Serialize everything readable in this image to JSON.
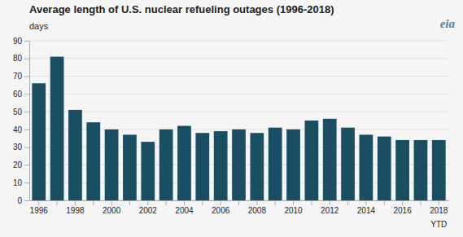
{
  "chart_data": {
    "type": "bar",
    "title": "Average length of U.S. nuclear refueling outages (1996-2018)",
    "ylabel": "days",
    "annotation": "YTD",
    "logo": "eia",
    "categories": [
      "1996",
      null,
      "1998",
      null,
      "2000",
      null,
      "2002",
      null,
      "2004",
      null,
      "2006",
      null,
      "2008",
      null,
      "2010",
      null,
      "2012",
      null,
      "2014",
      null,
      "2016",
      null,
      "2018"
    ],
    "values": [
      66,
      81,
      51,
      44,
      40,
      37,
      33,
      40,
      42,
      38,
      39,
      40,
      38,
      41,
      40,
      45,
      46,
      41,
      37,
      36,
      34,
      34,
      34
    ],
    "color": "#1a4f63",
    "ylim": [
      0,
      90
    ],
    "yticks": [
      0,
      10,
      20,
      30,
      40,
      50,
      60,
      70,
      80,
      90
    ],
    "grid": true
  }
}
